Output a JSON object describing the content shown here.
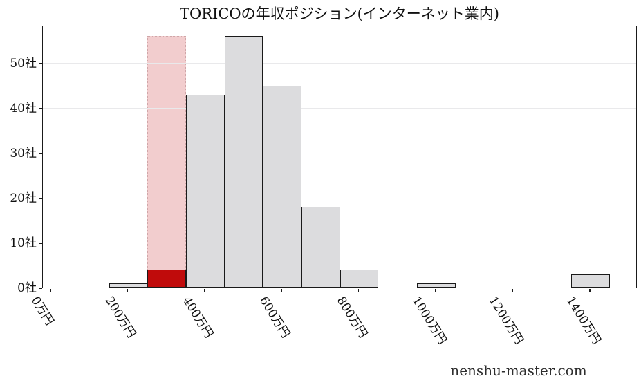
{
  "title": "TORICOの年収ポジション(インターネット業内)",
  "watermark": "nenshu-master.com",
  "colors": {
    "bar_fill": "#dcdcde",
    "bar_edge": "#1a1a1a",
    "highlight_bar": "#c00b0b",
    "highlight_band": "#f2cdce",
    "gridline": "#e9e9eb",
    "text": "#111111"
  },
  "chart_data": {
    "type": "bar",
    "subtype": "histogram",
    "title": "TORICOの年収ポジション(インターネット業内)",
    "xlabel": "",
    "ylabel": "",
    "bin_width_manen": 100,
    "bin_centers_manen": [
      200,
      300,
      400,
      500,
      600,
      700,
      800,
      900,
      1000,
      1100,
      1200,
      1300,
      1400
    ],
    "values": [
      1,
      4,
      43,
      56,
      45,
      18,
      4,
      0,
      1,
      0,
      0,
      0,
      3
    ],
    "highlight": {
      "bin_center_manen": 300,
      "bar_value": 4,
      "band_top_value": 56
    },
    "xtick_values_manen": [
      0,
      200,
      400,
      600,
      800,
      1000,
      1200,
      1400
    ],
    "xtick_labels": [
      "0万円",
      "200万円",
      "400万円",
      "600万円",
      "800万円",
      "1000万円",
      "1200万円",
      "1400万円"
    ],
    "ytick_values": [
      0,
      10,
      20,
      30,
      40,
      50
    ],
    "ytick_labels": [
      "0社",
      "10社",
      "20社",
      "30社",
      "40社",
      "50社"
    ],
    "ylim": [
      0,
      58.5
    ],
    "xlim_manen": [
      -20,
      1525
    ],
    "grid": "horizontal",
    "legend": "none"
  }
}
